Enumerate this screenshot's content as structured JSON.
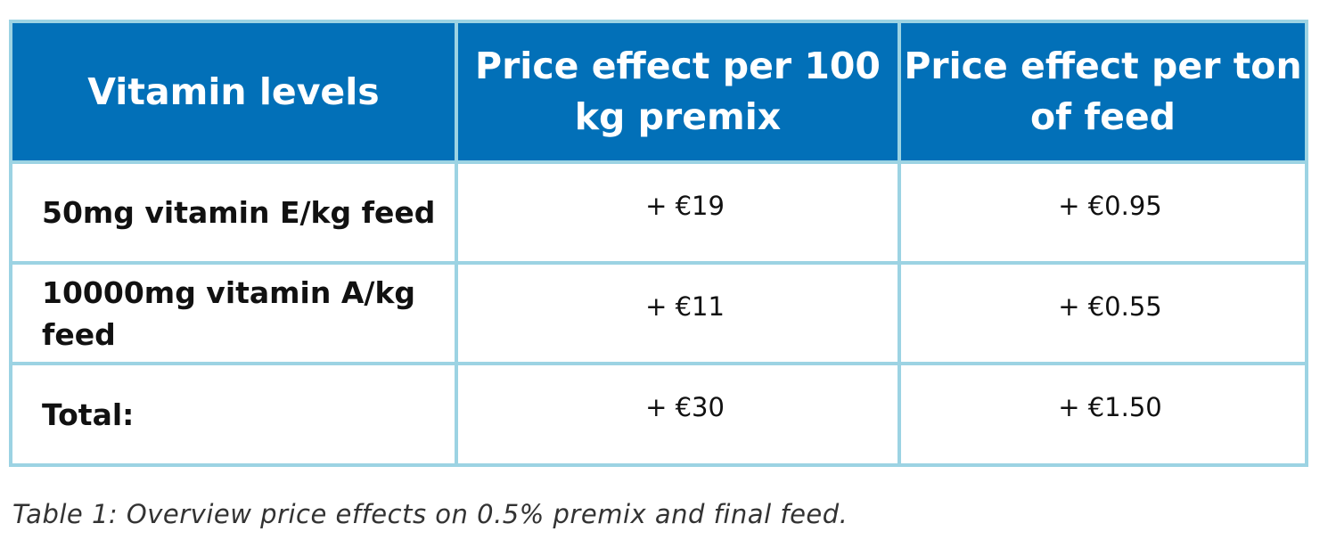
{
  "table": {
    "headers": [
      "Vitamin levels",
      "Price effect per 100 kg premix",
      "Price effect per ton of feed"
    ],
    "rows": [
      {
        "label": "50mg vitamin E/kg feed",
        "per_100kg_premix": "+ €19",
        "per_ton_feed": "+ €0.95"
      },
      {
        "label": "10000mg vitamin A/kg feed",
        "per_100kg_premix": "+ €11",
        "per_ton_feed": "+ €0.55"
      },
      {
        "label": "Total:",
        "per_100kg_premix": "+ €30",
        "per_ton_feed": "+ €1.50"
      }
    ]
  },
  "caption": "Table 1: Overview price effects on 0.5% premix and final feed.",
  "colors": {
    "header_background": "#0270b8",
    "header_text": "#ffffff",
    "border": "#9cd3e3",
    "body_text": "#111111",
    "caption_text": "#333333"
  }
}
